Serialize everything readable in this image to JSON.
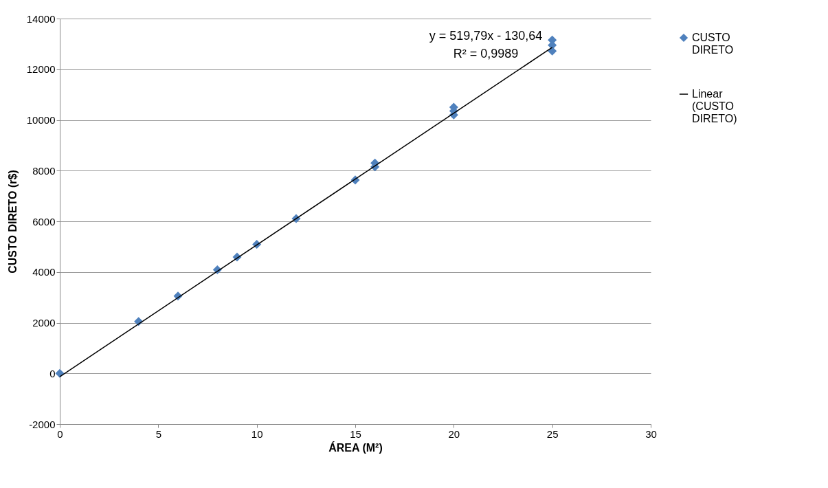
{
  "chart_data": {
    "type": "scatter",
    "xlabel": "ÁREA (M²)",
    "ylabel": "CUSTO DIRETO (r$)",
    "xlim": [
      0,
      30
    ],
    "xticks": [
      0,
      5,
      10,
      15,
      20,
      25,
      30
    ],
    "ylim": [
      -2000,
      14000
    ],
    "yticks": [
      -2000,
      0,
      2000,
      4000,
      6000,
      8000,
      10000,
      12000,
      14000
    ],
    "grid": "y",
    "legend": "right",
    "marker": "diamond",
    "annotations": [
      "y = 519,79x - 130,64",
      "R² = 0,9989"
    ],
    "series": [
      {
        "name": "CUSTO DIRETO",
        "color": "#4f81bd",
        "x": [
          0,
          4,
          6,
          8,
          9,
          10,
          12,
          15,
          16,
          16,
          20,
          20,
          20,
          25,
          25,
          25
        ],
        "values": [
          0,
          2050,
          3050,
          4090,
          4590,
          5090,
          6110,
          7630,
          8300,
          8150,
          10500,
          10350,
          10200,
          13150,
          12950,
          12720
        ]
      },
      {
        "name": "Linear (CUSTO DIRETO)",
        "type": "line",
        "color": "#000000",
        "line_style": "solid",
        "marker": "none",
        "x": [
          0,
          25
        ],
        "values": [
          -131,
          12864
        ]
      }
    ]
  }
}
